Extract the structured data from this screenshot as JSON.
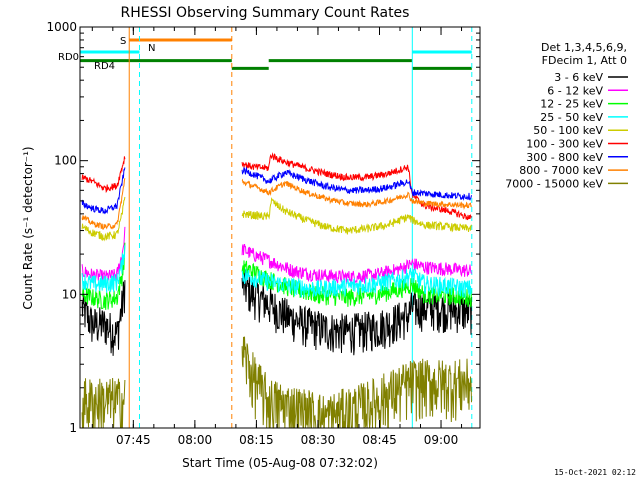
{
  "chart_data": {
    "type": "line",
    "title": "RHESSI Observing Summary Count Rates",
    "xlabel": "Start Time (05-Aug-08 07:32:02)",
    "ylabel": "Count Rate (s⁻¹ detector⁻¹)",
    "y_scale": "log",
    "ylim": [
      1,
      1000
    ],
    "xlim_minutes_after_0732": [
      0,
      97.5
    ],
    "y_ticks": [
      {
        "value": 1,
        "label": "1"
      },
      {
        "value": 10,
        "label": "10"
      },
      {
        "value": 100,
        "label": "100"
      },
      {
        "value": 1000,
        "label": "1000"
      }
    ],
    "x_ticks": [
      {
        "minute": 13,
        "label": "07:45"
      },
      {
        "minute": 28,
        "label": "08:00"
      },
      {
        "minute": 43,
        "label": "08:15"
      },
      {
        "minute": 58,
        "label": "08:30"
      },
      {
        "minute": 73,
        "label": "08:45"
      },
      {
        "minute": 88,
        "label": "09:00"
      }
    ],
    "legend": {
      "position": "right",
      "header": [
        "Det 1,3,4,5,6,9,",
        "FDecim 1, Att 0"
      ],
      "entries": [
        {
          "label": "3 - 6 keV",
          "color": "#000000"
        },
        {
          "label": "6 - 12 keV",
          "color": "#ff00ff"
        },
        {
          "label": "12 - 25 keV",
          "color": "#00ff00"
        },
        {
          "label": "25 - 50 keV",
          "color": "#00ffff"
        },
        {
          "label": "50 - 100 keV",
          "color": "#cccc00"
        },
        {
          "label": "100 - 300 keV",
          "color": "#ff0000"
        },
        {
          "label": "300 - 800 keV",
          "color": "#0000ff"
        },
        {
          "label": "800 - 7000 keV",
          "color": "#ff8000"
        },
        {
          "label": "7000 - 15000 keV",
          "color": "#808000"
        }
      ]
    },
    "flag_labels": [
      {
        "text": "S",
        "color": "#ff8000"
      },
      {
        "text": "N",
        "color": "#00ffff"
      },
      {
        "text": "RD0",
        "color": "#008000"
      },
      {
        "text": "RD4",
        "color": "#008000"
      }
    ],
    "flag_bars": [
      {
        "name": "S",
        "color": "#ff8000",
        "y": 800,
        "segments": [
          [
            12,
            37
          ]
        ]
      },
      {
        "name": "N",
        "color": "#00ffff",
        "y": 650,
        "segments": [
          [
            0,
            14.5
          ],
          [
            81,
            95.5
          ]
        ]
      },
      {
        "name": "RD0",
        "color": "#008000",
        "y": 560,
        "segments": [
          [
            0,
            37
          ],
          [
            46,
            81
          ]
        ]
      },
      {
        "name": "RD4",
        "color": "#008000",
        "y": 490,
        "segments": [
          [
            37,
            46
          ],
          [
            81,
            95.5
          ]
        ]
      }
    ],
    "vertical_markers": [
      {
        "minute": 12,
        "color": "#ff8000",
        "style": "solid"
      },
      {
        "minute": 37,
        "color": "#ff8000",
        "style": "dashed"
      },
      {
        "minute": 0,
        "color": "#00ffff",
        "style": "solid"
      },
      {
        "minute": 14.5,
        "color": "#00ffff",
        "style": "dashed"
      },
      {
        "minute": 81,
        "color": "#00ffff",
        "style": "solid"
      },
      {
        "minute": 95.5,
        "color": "#00ffff",
        "style": "dashed"
      }
    ],
    "segments_minutes": [
      [
        0.5,
        11
      ],
      [
        39.5,
        95.5
      ]
    ],
    "series": [
      {
        "name": "3 - 6 keV",
        "color": "#000000",
        "noise": 0.35,
        "seg1": [
          [
            0.5,
            8
          ],
          [
            3,
            6
          ],
          [
            6,
            6
          ],
          [
            9,
            5
          ],
          [
            10.2,
            8
          ],
          [
            11,
            12
          ]
        ],
        "seg2": [
          [
            39.5,
            12
          ],
          [
            42,
            10
          ],
          [
            45,
            9
          ],
          [
            50,
            7
          ],
          [
            55,
            6
          ],
          [
            60,
            5.5
          ],
          [
            65,
            5.3
          ],
          [
            70,
            5.5
          ],
          [
            75,
            6
          ],
          [
            80,
            7
          ],
          [
            81,
            8
          ],
          [
            85,
            8
          ],
          [
            90,
            7.8
          ],
          [
            95.5,
            7.5
          ]
        ]
      },
      {
        "name": "6 - 12 keV",
        "color": "#ff00ff",
        "noise": 0.12,
        "seg1": [
          [
            0.5,
            15
          ],
          [
            3,
            14
          ],
          [
            6,
            13.5
          ],
          [
            9,
            14
          ],
          [
            10.3,
            20
          ],
          [
            11,
            30
          ]
        ],
        "seg2": [
          [
            39.5,
            22
          ],
          [
            42,
            20
          ],
          [
            46,
            18
          ],
          [
            52,
            15
          ],
          [
            58,
            14
          ],
          [
            65,
            13.5
          ],
          [
            72,
            14
          ],
          [
            78,
            15.5
          ],
          [
            81,
            17
          ],
          [
            84,
            16
          ],
          [
            90,
            15.5
          ],
          [
            95.5,
            15
          ]
        ]
      },
      {
        "name": "12 - 25 keV",
        "color": "#00ff00",
        "noise": 0.16,
        "seg1": [
          [
            0.5,
            10
          ],
          [
            3,
            9.5
          ],
          [
            6,
            9
          ],
          [
            9,
            9.5
          ],
          [
            10.3,
            14
          ],
          [
            11,
            22
          ]
        ],
        "seg2": [
          [
            39.5,
            16
          ],
          [
            42,
            15
          ],
          [
            46,
            13
          ],
          [
            52,
            11
          ],
          [
            58,
            10
          ],
          [
            65,
            9.5
          ],
          [
            72,
            10
          ],
          [
            78,
            11
          ],
          [
            81,
            12
          ],
          [
            84,
            10
          ],
          [
            90,
            9.8
          ],
          [
            95.5,
            9.5
          ]
        ]
      },
      {
        "name": "25 - 50 keV",
        "color": "#00ffff",
        "noise": 0.16,
        "seg1": [
          [
            0.5,
            13
          ],
          [
            3,
            12
          ],
          [
            6,
            12
          ],
          [
            9,
            12.5
          ],
          [
            10.3,
            17
          ],
          [
            11,
            24
          ]
        ],
        "seg2": [
          [
            39.5,
            14
          ],
          [
            42,
            13.5
          ],
          [
            46,
            12.5
          ],
          [
            52,
            11.5
          ],
          [
            58,
            11
          ],
          [
            65,
            11.5
          ],
          [
            72,
            12
          ],
          [
            78,
            13
          ],
          [
            81,
            14
          ],
          [
            84,
            12
          ],
          [
            90,
            11.5
          ],
          [
            95.5,
            11
          ]
        ]
      },
      {
        "name": "50 - 100 keV",
        "color": "#cccc00",
        "noise": 0.07,
        "seg1": [
          [
            0.5,
            32
          ],
          [
            3,
            29
          ],
          [
            6,
            27
          ],
          [
            9,
            28
          ],
          [
            10.3,
            40
          ],
          [
            11,
            55
          ]
        ],
        "seg2": [
          [
            39.5,
            40
          ],
          [
            46,
            38
          ],
          [
            46.6,
            50
          ],
          [
            50,
            42
          ],
          [
            55,
            36
          ],
          [
            60,
            32
          ],
          [
            65,
            30
          ],
          [
            70,
            31
          ],
          [
            75,
            33
          ],
          [
            80,
            38
          ],
          [
            81,
            36
          ],
          [
            84,
            33
          ],
          [
            90,
            32
          ],
          [
            95.5,
            31
          ]
        ]
      },
      {
        "name": "100 - 300 keV",
        "color": "#ff0000",
        "noise": 0.06,
        "seg1": [
          [
            0.5,
            75
          ],
          [
            3,
            70
          ],
          [
            6,
            62
          ],
          [
            9,
            65
          ],
          [
            10.3,
            90
          ],
          [
            11,
            110
          ]
        ],
        "seg2": [
          [
            39.5,
            95
          ],
          [
            42,
            90
          ],
          [
            46,
            88
          ],
          [
            46.5,
            110
          ],
          [
            50,
            98
          ],
          [
            55,
            88
          ],
          [
            60,
            80
          ],
          [
            65,
            75
          ],
          [
            70,
            75
          ],
          [
            75,
            80
          ],
          [
            80,
            90
          ],
          [
            81,
            55
          ],
          [
            84,
            46
          ],
          [
            90,
            42
          ],
          [
            95.5,
            37
          ]
        ]
      },
      {
        "name": "300 - 800 keV",
        "color": "#0000ff",
        "noise": 0.06,
        "seg1": [
          [
            0.5,
            48
          ],
          [
            3,
            44
          ],
          [
            6,
            42
          ],
          [
            9,
            46
          ],
          [
            10.3,
            70
          ],
          [
            11,
            90
          ]
        ],
        "seg2": [
          [
            39.5,
            85
          ],
          [
            42,
            80
          ],
          [
            46,
            70
          ],
          [
            50,
            82
          ],
          [
            55,
            72
          ],
          [
            60,
            64
          ],
          [
            65,
            60
          ],
          [
            70,
            60
          ],
          [
            75,
            63
          ],
          [
            80,
            70
          ],
          [
            81,
            58
          ],
          [
            84,
            57
          ],
          [
            90,
            55
          ],
          [
            95.5,
            54
          ]
        ]
      },
      {
        "name": "800 - 7000 keV",
        "color": "#ff8000",
        "noise": 0.05,
        "seg1": [
          [
            0.5,
            38
          ],
          [
            3,
            34
          ],
          [
            6,
            32
          ],
          [
            9,
            33
          ],
          [
            10.3,
            55
          ],
          [
            11,
            75
          ]
        ],
        "seg2": [
          [
            39.5,
            70
          ],
          [
            42,
            65
          ],
          [
            46,
            58
          ],
          [
            50,
            68
          ],
          [
            55,
            58
          ],
          [
            60,
            52
          ],
          [
            65,
            48
          ],
          [
            70,
            47
          ],
          [
            75,
            50
          ],
          [
            80,
            56
          ],
          [
            81,
            50
          ],
          [
            84,
            48
          ],
          [
            90,
            47
          ],
          [
            95.5,
            46
          ]
        ]
      },
      {
        "name": "7000 - 15000 keV",
        "color": "#808000",
        "noise": 0.5,
        "seg1": [
          [
            0.5,
            1.6
          ],
          [
            11,
            1.6
          ]
        ],
        "seg2": [
          [
            39.5,
            4
          ],
          [
            42,
            2.5
          ],
          [
            46,
            1.6
          ],
          [
            60,
            1.2
          ],
          [
            70,
            1.5
          ],
          [
            81,
            2.2
          ],
          [
            95.5,
            2.2
          ]
        ]
      }
    ]
  },
  "footer_date": "15-Oct-2021 02:12"
}
